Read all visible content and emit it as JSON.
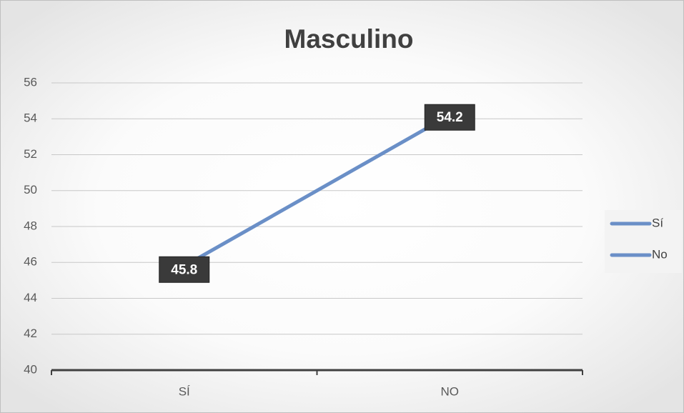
{
  "chart_data": {
    "type": "line",
    "title": "Masculino",
    "categories": [
      "SÍ",
      "NO"
    ],
    "values": [
      45.8,
      54.2
    ],
    "color": "#6a8fc7",
    "legend_entries": [
      "Sí",
      "No"
    ],
    "ylim": [
      40,
      56
    ],
    "yticks": [
      40,
      42,
      44,
      46,
      48,
      50,
      52,
      54,
      56
    ],
    "grid": true
  }
}
